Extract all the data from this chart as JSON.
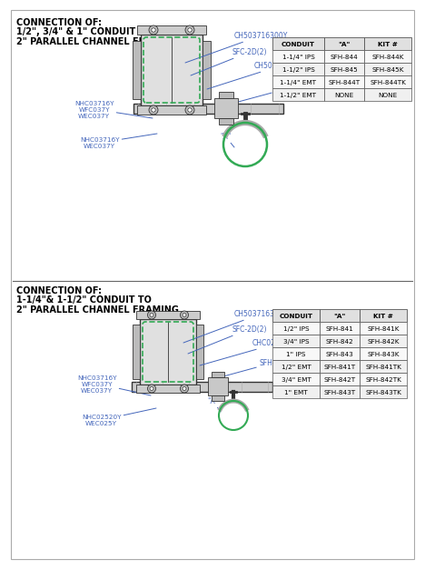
{
  "bg_color": "#ffffff",
  "line_color": "#666666",
  "dark_color": "#333333",
  "blue_color": "#4466bb",
  "green_color": "#33aa55",
  "title1_lines": [
    "CONNECTION OF:",
    "1/2\", 3/4\" & 1\" CONDUIT TO",
    "2\" PARALLEL CHANNEL FRAMING"
  ],
  "title2_lines": [
    "CONNECTION OF:",
    "1-1/4\"& 1-1/2\" CONDUIT TO",
    "2\" PARALLEL CHANNEL FRAMING"
  ],
  "table1_headers": [
    "CONDUIT",
    "\"A\"",
    "KIT #"
  ],
  "table1_rows": [
    [
      "1/2\" IPS",
      "SFH-841",
      "SFH-841K"
    ],
    [
      "3/4\" IPS",
      "SFH-842",
      "SFH-842K"
    ],
    [
      "1\" IPS",
      "SFH-843",
      "SFH-843K"
    ],
    [
      "1/2\" EMT",
      "SFH-841T",
      "SFH-841TK"
    ],
    [
      "3/4\" EMT",
      "SFH-842T",
      "SFH-842TK"
    ],
    [
      "1\" EMT",
      "SFH-843T",
      "SFH-843TK"
    ]
  ],
  "table2_headers": [
    "CONDUIT",
    "\"A\"",
    "KIT #"
  ],
  "table2_rows": [
    [
      "1-1/4\" IPS",
      "SFH-844",
      "SFH-844K"
    ],
    [
      "1-1/2\" IPS",
      "SFH-845",
      "SFH-845K"
    ],
    [
      "1-1/4\" EMT",
      "SFH-844T",
      "SFH-844TK"
    ],
    [
      "1-1/2\" EMT",
      "NONE",
      "NONE"
    ]
  ]
}
